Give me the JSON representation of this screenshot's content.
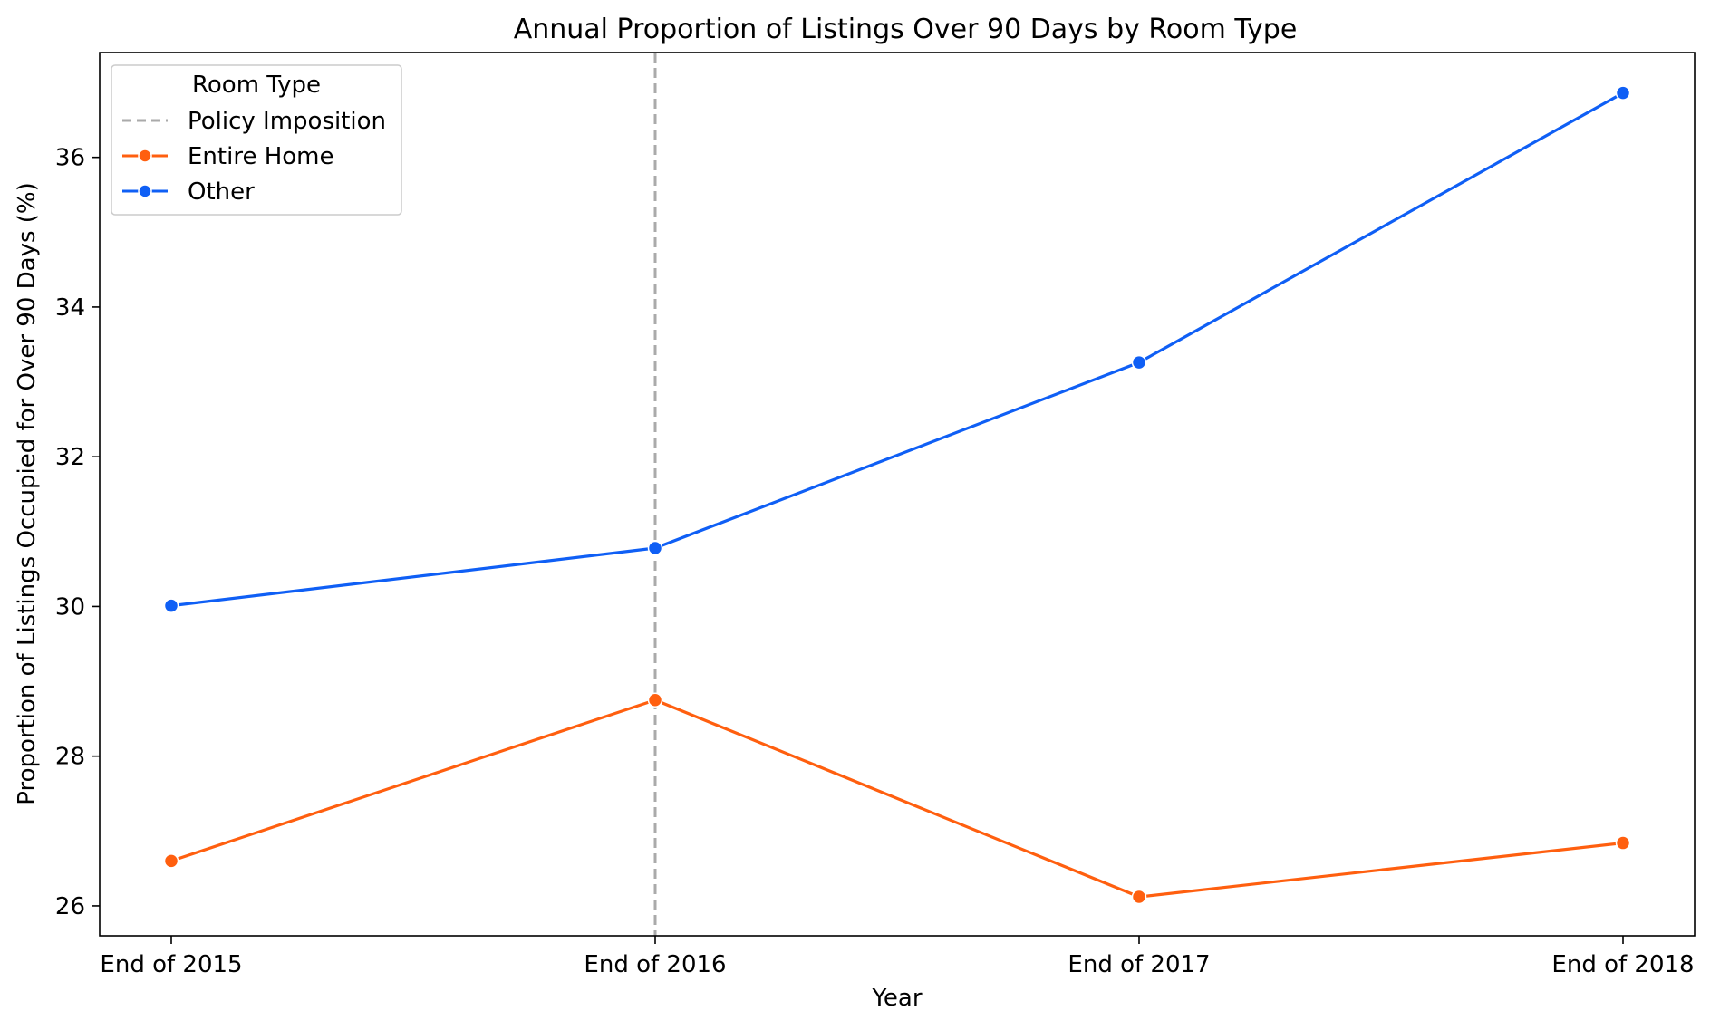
{
  "chart_data": {
    "type": "line",
    "title": "Annual Proportion of Listings Over 90 Days by Room Type",
    "xlabel": "Year",
    "ylabel": "Proportion of Listings Occupied for Over 90 Days (%)",
    "categories": [
      "End of 2015",
      "End of 2016",
      "End of 2017",
      "End of 2018"
    ],
    "ylim": [
      25.6,
      37.4
    ],
    "yticks": [
      26,
      28,
      30,
      32,
      34,
      36
    ],
    "grid": false,
    "legend": {
      "title": "Room Type",
      "position": "top-left",
      "entries": [
        "Policy Imposition",
        "Entire Home",
        "Other"
      ]
    },
    "vline": {
      "x": "End of 2016",
      "label": "Policy Imposition",
      "color": "#aaaaaa",
      "style": "dashed"
    },
    "series": [
      {
        "name": "Entire Home",
        "color": "#ff5f0f",
        "values": [
          26.6,
          28.75,
          26.12,
          26.84
        ]
      },
      {
        "name": "Other",
        "color": "#0f5ff5",
        "values": [
          30.01,
          30.78,
          33.26,
          36.86
        ]
      }
    ]
  }
}
